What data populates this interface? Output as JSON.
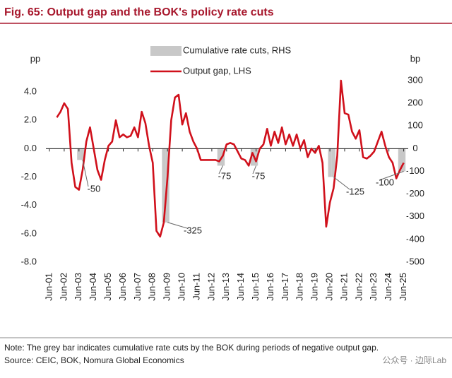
{
  "chart_data": {
    "type": "combo",
    "title": "Fig. 65: Output gap and the BOK's policy rate cuts",
    "ylabel": "pp",
    "y2label": "bp",
    "note": "Note: The grey bar indicates cumulative rate cuts by the BOK during periods of negative output gap.",
    "source": "Source: CEIC, BOK, Nomura Global Economics",
    "watermark": "公众号 · 边际Lab",
    "categories": [
      "Jun-01",
      null,
      null,
      null,
      "Jun-02",
      null,
      null,
      null,
      "Jun-03",
      null,
      null,
      null,
      "Jun-04",
      null,
      null,
      null,
      "Jun-05",
      null,
      null,
      null,
      "Jun-06",
      null,
      null,
      null,
      "Jun-07",
      null,
      null,
      null,
      "Jun-08",
      null,
      null,
      null,
      "Jun-09",
      null,
      null,
      null,
      "Jun-10",
      null,
      null,
      null,
      "Jun-11",
      null,
      null,
      null,
      "Jun-12",
      null,
      null,
      null,
      "Jun-13",
      null,
      null,
      null,
      "Jun-14",
      null,
      null,
      null,
      "Jun-15",
      null,
      null,
      null,
      "Jun-16",
      null,
      null,
      null,
      "Jun-17",
      null,
      null,
      null,
      "Jun-18",
      null,
      null,
      null,
      "Jun-19",
      null,
      null,
      null,
      "Jun-20",
      null,
      null,
      null,
      "Jun-21",
      null,
      null,
      null,
      "Jun-22",
      null,
      null,
      null,
      "Jun-23",
      null,
      null,
      null,
      "Jun-24",
      null,
      null,
      null,
      "Jun-25"
    ],
    "series": [
      {
        "name": "Cumulative rate cuts, RHS",
        "type": "bar",
        "axis": "y2",
        "color": "#c8c8c8",
        "values": [
          null,
          null,
          null,
          null,
          null,
          null,
          null,
          null,
          -50,
          -50,
          null,
          null,
          null,
          null,
          null,
          null,
          null,
          null,
          null,
          null,
          null,
          null,
          null,
          null,
          null,
          null,
          null,
          null,
          null,
          null,
          null,
          -325,
          -325,
          null,
          null,
          null,
          null,
          null,
          null,
          null,
          null,
          null,
          null,
          null,
          null,
          null,
          -75,
          -75,
          null,
          null,
          null,
          null,
          null,
          null,
          null,
          -75,
          -75,
          null,
          null,
          null,
          null,
          null,
          null,
          null,
          null,
          null,
          null,
          null,
          null,
          null,
          null,
          null,
          null,
          null,
          null,
          null,
          -125,
          -125,
          null,
          null,
          null,
          null,
          null,
          null,
          null,
          null,
          null,
          null,
          null,
          null,
          null,
          null,
          null,
          null,
          null,
          -100,
          -100
        ]
      },
      {
        "name": "Output gap, LHS",
        "type": "line",
        "axis": "y",
        "color": "#d0101b",
        "values": [
          null,
          null,
          2.2,
          2.6,
          3.2,
          2.8,
          -1.0,
          -2.7,
          -2.9,
          -1.5,
          0.5,
          1.5,
          0.0,
          -1.5,
          -2.2,
          -0.8,
          0.2,
          0.5,
          2.0,
          0.8,
          1.0,
          0.8,
          0.9,
          1.5,
          0.8,
          2.6,
          1.8,
          0.2,
          -1.0,
          -5.8,
          -6.2,
          -5.2,
          -2.0,
          2.0,
          3.6,
          3.8,
          1.7,
          2.5,
          1.2,
          0.5,
          0.0,
          -0.8,
          -0.8,
          -0.8,
          -0.8,
          -0.8,
          -0.9,
          -0.5,
          0.3,
          0.4,
          0.3,
          -0.2,
          -0.7,
          -0.8,
          -1.2,
          -0.3,
          -0.9,
          0.0,
          0.3,
          1.4,
          0.2,
          1.2,
          0.4,
          1.5,
          0.3,
          1.0,
          0.2,
          1.0,
          0.0,
          0.6,
          -0.6,
          0.0,
          -0.3,
          0.2,
          -1.0,
          -5.5,
          -3.8,
          -2.8,
          -0.5,
          4.8,
          2.5,
          2.4,
          1.2,
          0.7,
          1.3,
          -0.6,
          -0.7,
          -0.5,
          -0.2,
          0.5,
          1.2,
          0.2,
          -0.6,
          -1.0,
          -2.1,
          -1.5,
          -1.0
        ]
      }
    ],
    "ylim": [
      -8,
      4.8
    ],
    "yticks": [
      {
        "value": 4,
        "label": "4.0"
      },
      {
        "value": 2,
        "label": "2.0"
      },
      {
        "value": 0,
        "label": "0.0"
      },
      {
        "value": -2,
        "label": "-2.0"
      },
      {
        "value": -4,
        "label": "-4.0"
      },
      {
        "value": -6,
        "label": "-6.0"
      },
      {
        "value": -8,
        "label": "-8.0"
      }
    ],
    "y2lim": [
      -500,
      300
    ],
    "y2ticks": [
      300,
      200,
      100,
      0,
      -100,
      -200,
      -300,
      -400,
      -500
    ],
    "legend": "top-left",
    "grid": false
  }
}
